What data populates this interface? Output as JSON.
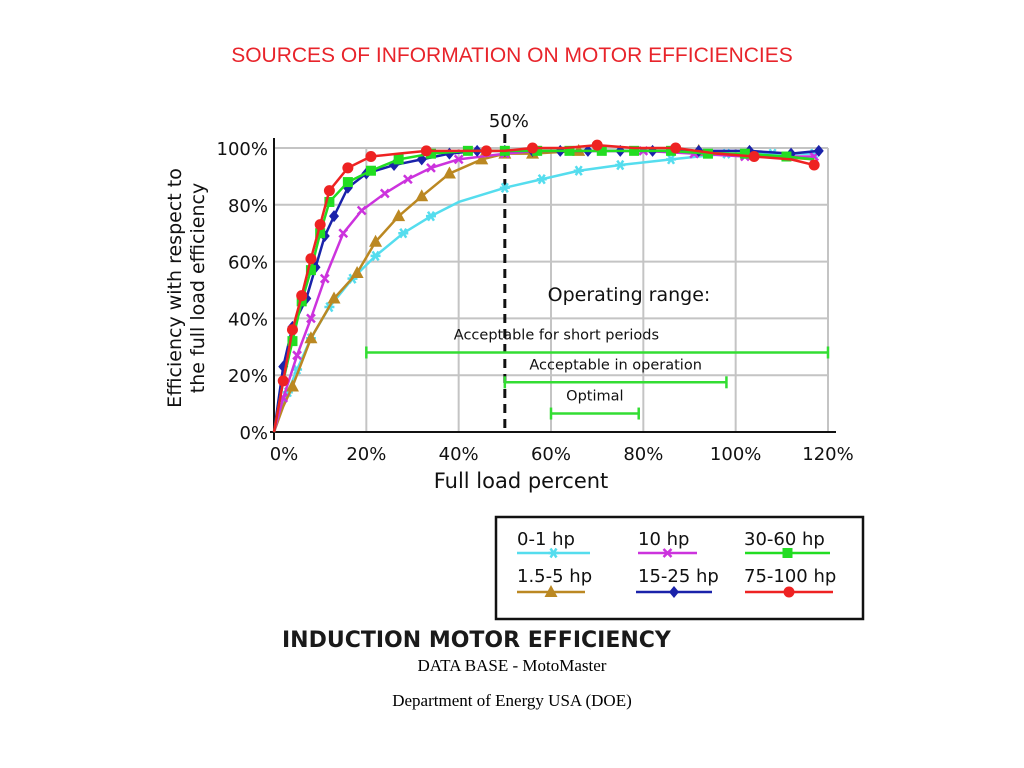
{
  "slide": {
    "title": "SOURCES OF INFORMATION ON MOTOR EFFICIENCIES",
    "caption_line1": "DATA BASE - MotoMaster",
    "caption_line2": "Department of Energy USA (DOE)"
  },
  "chart_data": {
    "type": "line",
    "title": "INDUCTION MOTOR EFFICIENCY",
    "xlabel": "Full load percent",
    "ylabel_lines": [
      "Efficiency with respect to",
      "the full load efficiency"
    ],
    "xlim": [
      0,
      120
    ],
    "ylim": [
      0,
      100
    ],
    "x_ticks": [
      0,
      20,
      40,
      60,
      80,
      100,
      120
    ],
    "x_tick_labels": [
      "0%",
      "20%",
      "40%",
      "60%",
      "80%",
      "100%",
      "120%"
    ],
    "y_ticks": [
      0,
      20,
      40,
      60,
      80,
      100
    ],
    "y_tick_labels": [
      "0%",
      "20%",
      "40%",
      "60%",
      "80%",
      "100%"
    ],
    "grid": true,
    "legend_position": "bottom-right",
    "reference_line": {
      "x": 50,
      "label": "50%",
      "style": "dashed"
    },
    "annotations": {
      "heading": "Operating range:",
      "ranges": [
        {
          "label": "Acceptable for short periods",
          "from": 20,
          "to": 120,
          "y": 28,
          "color": "#33dd33"
        },
        {
          "label": "Acceptable in operation",
          "from": 50,
          "to": 98,
          "y": 17.5,
          "color": "#33dd33"
        },
        {
          "label": "Optimal",
          "from": 60,
          "to": 79,
          "y": 6.5,
          "color": "#33dd33"
        }
      ]
    },
    "series": [
      {
        "name": "0-1 hp",
        "color": "#55ddee",
        "marker": "star",
        "x": [
          0,
          2,
          5,
          8,
          12,
          17,
          22,
          28,
          34,
          40,
          50,
          58,
          66,
          75,
          86,
          98,
          108,
          117
        ],
        "y": [
          0,
          10,
          22,
          33,
          44,
          54,
          62,
          70,
          76,
          81,
          86,
          89,
          92,
          94,
          96,
          98,
          98,
          98
        ],
        "marker_x": [
          3,
          5,
          8,
          12,
          17,
          22,
          28,
          34,
          50,
          58,
          66,
          75,
          86,
          98,
          108,
          117
        ]
      },
      {
        "name": "1.5-5 hp",
        "color": "#bb8822",
        "marker": "triangle",
        "x": [
          0,
          2,
          4,
          8,
          13,
          18,
          22,
          27,
          32,
          38,
          45,
          50,
          56,
          66,
          76,
          86,
          92,
          98,
          108,
          117
        ],
        "y": [
          0,
          9,
          16,
          33,
          47,
          56,
          67,
          76,
          83,
          91,
          96,
          98,
          98,
          99,
          99,
          99,
          99,
          98,
          97,
          96
        ],
        "marker_x": [
          4,
          8,
          13,
          18,
          22,
          27,
          32,
          38,
          45,
          50,
          56,
          66,
          92
        ]
      },
      {
        "name": "10 hp",
        "color": "#cc33dd",
        "marker": "x",
        "x": [
          0,
          2,
          5,
          8,
          11,
          15,
          19,
          24,
          29,
          34,
          40,
          50,
          57,
          64,
          71,
          80,
          91,
          102,
          112,
          117
        ],
        "y": [
          0,
          12,
          27,
          40,
          54,
          70,
          78,
          84,
          89,
          93,
          96,
          98,
          99,
          99,
          99,
          99,
          98,
          97,
          97,
          97
        ],
        "marker_x": [
          2,
          5,
          8,
          11,
          15,
          19,
          24,
          29,
          34,
          40,
          50,
          57,
          64,
          71,
          80,
          91,
          102,
          112,
          117
        ]
      },
      {
        "name": "15-25 hp",
        "color": "#1a22aa",
        "marker": "diamond",
        "x": [
          0,
          2,
          4,
          7,
          9,
          11,
          13,
          16,
          20,
          26,
          32,
          38,
          44,
          50,
          56,
          62,
          68,
          75,
          82,
          92,
          103,
          112,
          118
        ],
        "y": [
          0,
          23,
          37,
          47,
          58,
          69,
          76,
          86,
          91,
          94,
          96,
          98,
          99,
          99,
          99,
          99,
          99,
          99,
          99,
          99,
          99,
          98,
          99
        ],
        "marker_x": [
          2,
          4,
          7,
          9,
          11,
          13,
          16,
          20,
          26,
          32,
          38,
          44,
          50,
          56,
          62,
          68,
          75,
          82,
          92,
          103,
          112,
          118
        ]
      },
      {
        "name": "30-60 hp",
        "color": "#22dd22",
        "marker": "square",
        "x": [
          0,
          2,
          4,
          6,
          8,
          10,
          12,
          16,
          21,
          27,
          34,
          42,
          50,
          57,
          64,
          71,
          78,
          86,
          94,
          102,
          111,
          117
        ],
        "y": [
          0,
          18,
          32,
          46,
          57,
          70,
          81,
          88,
          92,
          96,
          98,
          99,
          99,
          99,
          99,
          99,
          99,
          99,
          98,
          98,
          97,
          96
        ],
        "marker_x": [
          4,
          6,
          8,
          10,
          12,
          16,
          21,
          27,
          34,
          42,
          50,
          57,
          64,
          71,
          78,
          86,
          94,
          102,
          111
        ]
      },
      {
        "name": "75-100 hp",
        "color": "#ee2222",
        "marker": "circle",
        "x": [
          0,
          2,
          4,
          6,
          8,
          10,
          12,
          16,
          21,
          27,
          33,
          40,
          46,
          50,
          56,
          63,
          70,
          78,
          87,
          96,
          104,
          112,
          117
        ],
        "y": [
          0,
          18,
          36,
          48,
          61,
          73,
          85,
          93,
          97,
          98,
          99,
          99,
          99,
          99,
          100,
          100,
          101,
          100,
          100,
          98,
          97,
          96,
          94
        ],
        "marker_x": [
          2,
          4,
          6,
          8,
          10,
          12,
          16,
          21,
          33,
          46,
          56,
          70,
          87,
          104,
          117
        ]
      }
    ]
  }
}
